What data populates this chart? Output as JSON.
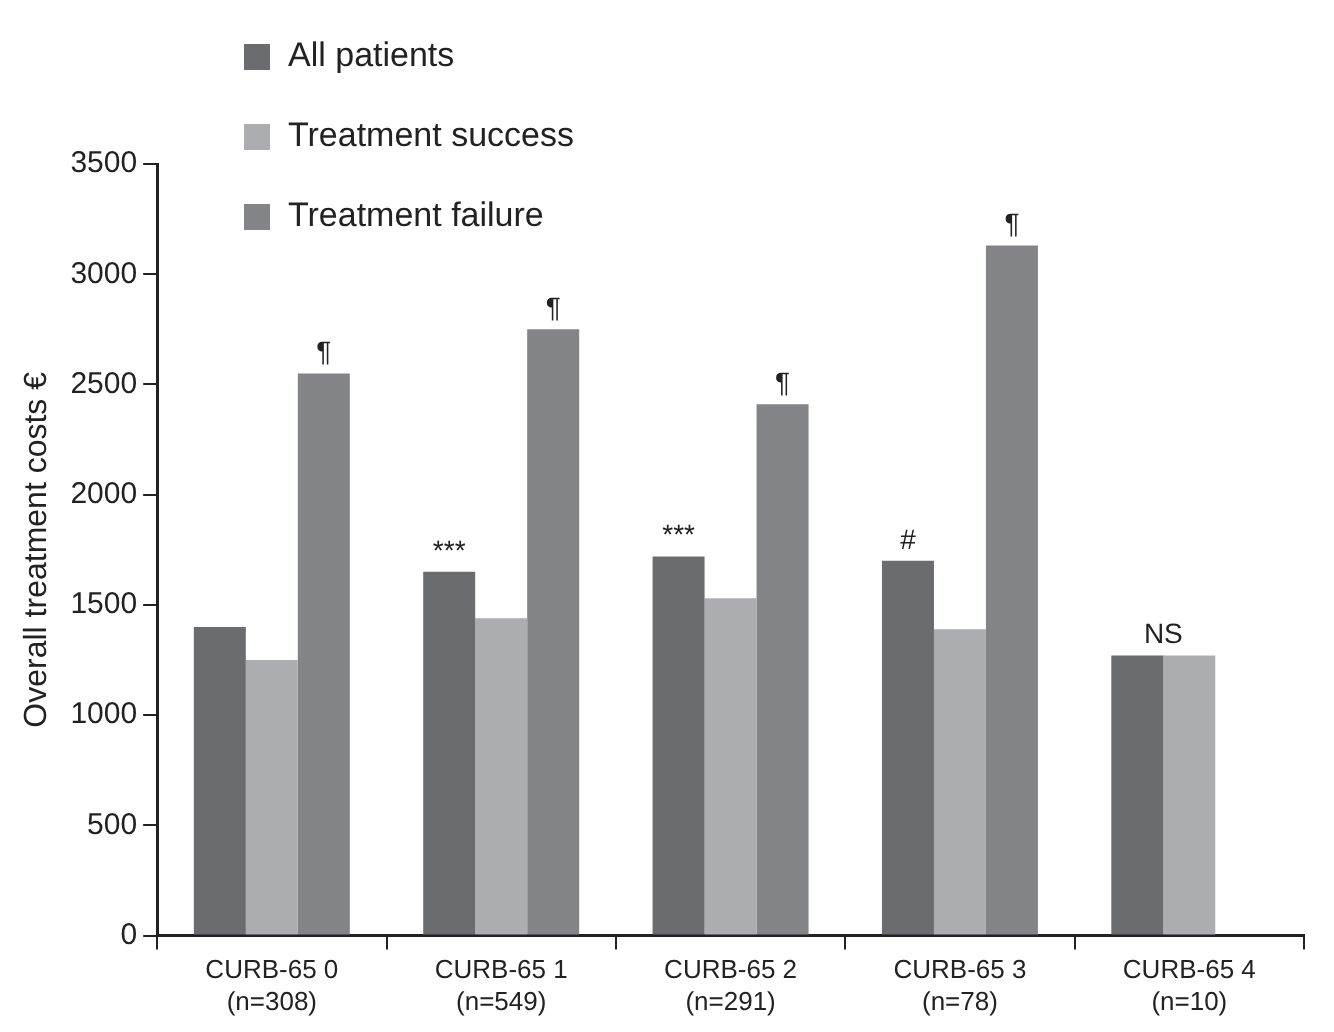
{
  "chart_data": {
    "type": "bar",
    "ylabel": "Overall treatment costs €",
    "categories": [
      "CURB-65 0\n(n=308)",
      "CURB-65 1\n(n=549)",
      "CURB-65 2\n(n=291)",
      "CURB-65 3\n(n=78)",
      "CURB-65 4\n(n=10)"
    ],
    "series": [
      {
        "name": "All patients",
        "color": "#6b6c70",
        "values": [
          1400,
          1650,
          1720,
          1700,
          1270
        ],
        "value_labels": [
          null,
          "***",
          "***",
          "#",
          null
        ]
      },
      {
        "name": "Treatment success",
        "color": "#abadb0",
        "values": [
          1250,
          1440,
          1530,
          1390,
          1270
        ],
        "value_labels": [
          null,
          null,
          null,
          null,
          null
        ]
      },
      {
        "name": "Treatment failure",
        "color": "#838488",
        "values": [
          2550,
          2750,
          2410,
          3130,
          null
        ],
        "value_labels": [
          "¶",
          "¶",
          "¶",
          "¶",
          null
        ]
      }
    ],
    "ylim": [
      0,
      3500
    ],
    "yticks": [
      0,
      500,
      1000,
      1500,
      2000,
      2500,
      3000,
      3500
    ],
    "grid": false,
    "legend": "top left",
    "annotations": [
      {
        "text": "NS",
        "x": "CURB-65 4\n(n=10)",
        "y": 1270
      }
    ]
  }
}
